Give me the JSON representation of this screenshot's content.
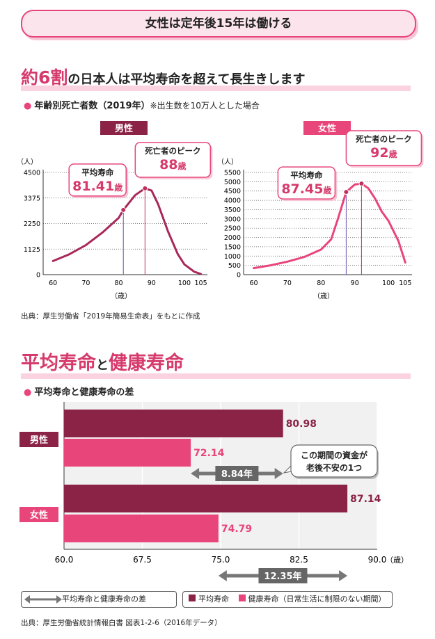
{
  "title": "女性は定年後15年は働ける",
  "section1": {
    "heading_hl": "約6割",
    "heading_rest": "の日本人は平均寿命を超えて長生きします",
    "bullet": "年齢別死亡者数（2019年）",
    "note": "※出生数を10万人とした場合",
    "source": "出典：厚生労働省「2019年簡易生命表」をもとに作成"
  },
  "section2": {
    "heading_a": "平均寿命",
    "heading_to": "と",
    "heading_b": "健康寿命",
    "bullet": "平均寿命と健康寿命の差",
    "source": "出典：厚生労働省統計情報白書 図表1-2-6（2016年データ）"
  },
  "chart_data": [
    {
      "type": "line",
      "label": "男性",
      "ylabel": "（人）",
      "xlabel": "（歳）",
      "x_ticks": [
        60,
        70,
        80,
        90,
        100,
        105
      ],
      "y_ticks": [
        0,
        1125,
        2250,
        3375,
        4500
      ],
      "xlim": [
        57,
        107
      ],
      "ylim": [
        0,
        4500
      ],
      "x": [
        60,
        65,
        70,
        75,
        80,
        81.41,
        85,
        88,
        90,
        92,
        95,
        98,
        100,
        103,
        105
      ],
      "y": [
        600,
        900,
        1300,
        1850,
        2500,
        2850,
        3500,
        3800,
        3700,
        3100,
        1900,
        900,
        450,
        130,
        30
      ],
      "annotations": [
        {
          "title": "平均寿命",
          "value": "81.41",
          "unit": "歳",
          "x": 81.41,
          "y": 2850
        },
        {
          "title": "死亡者のピーク",
          "value": "88",
          "unit": "歳",
          "x": 88,
          "y": 3800
        }
      ]
    },
    {
      "type": "line",
      "label": "女性",
      "ylabel": "（人）",
      "xlabel": "（歳）",
      "x_ticks": [
        60,
        70,
        80,
        90,
        100,
        105
      ],
      "y_ticks": [
        0,
        500,
        1000,
        1500,
        2000,
        2500,
        3000,
        3500,
        4000,
        4500,
        5000,
        5500
      ],
      "xlim": [
        57,
        107
      ],
      "ylim": [
        0,
        5500
      ],
      "x": [
        60,
        65,
        70,
        75,
        80,
        83,
        85,
        87.45,
        90,
        92,
        94,
        96,
        98,
        100,
        103,
        105
      ],
      "y": [
        350,
        500,
        700,
        950,
        1350,
        1900,
        3000,
        4450,
        4850,
        4900,
        4650,
        4100,
        3400,
        2900,
        1800,
        650
      ],
      "annotations": [
        {
          "title": "平均寿命",
          "value": "87.45",
          "unit": "歳",
          "x": 87.45,
          "y": 4450
        },
        {
          "title": "死亡者のピーク",
          "value": "92",
          "unit": "歳",
          "x": 92,
          "y": 4900
        }
      ]
    },
    {
      "type": "bar",
      "orientation": "horizontal",
      "categories": [
        "男性",
        "女性"
      ],
      "series": [
        {
          "name": "平均寿命",
          "values": [
            80.98,
            87.14
          ],
          "color": "#8b2346"
        },
        {
          "name": "健康寿命（日常生活に制限のない期間）",
          "values": [
            72.14,
            74.79
          ],
          "color": "#e8457a"
        }
      ],
      "xlim": [
        60,
        90
      ],
      "x_ticks": [
        "60.0",
        "67.5",
        "75.0",
        "82.5",
        "90.0"
      ],
      "xunit": "（歳）",
      "gaps": [
        {
          "label": "8.84年",
          "from": 72.14,
          "to": 80.98
        },
        {
          "label": "12.35年",
          "from": 74.79,
          "to": 87.14
        }
      ],
      "callout": [
        "この期間の資金が",
        "老後不安の1つ"
      ],
      "legend_gap": "平均寿命と健康寿命の差"
    }
  ],
  "colors": {
    "accent": "#e8457a",
    "dark": "#8b2346",
    "pink_light": "#fce4ec"
  }
}
